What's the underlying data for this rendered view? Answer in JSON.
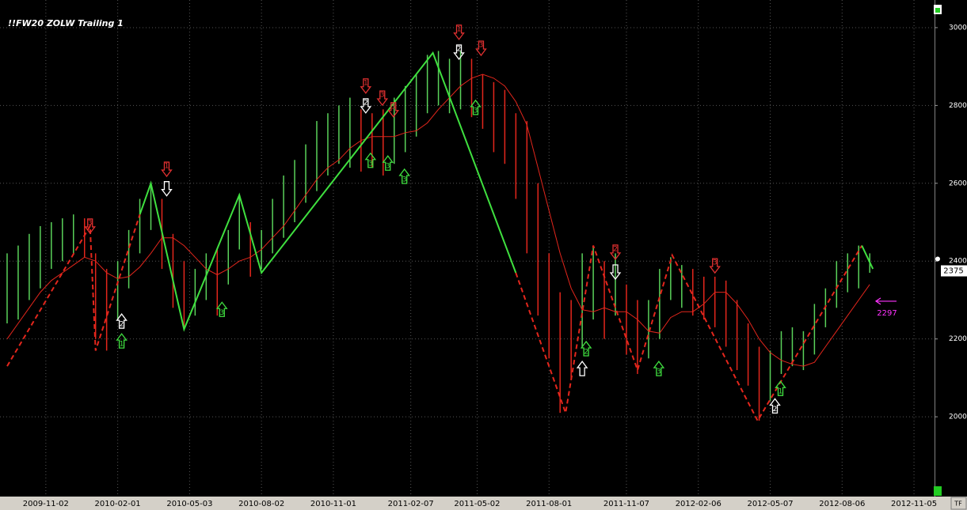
{
  "chart_data": {
    "type": "ohlc",
    "title": "!!FW20 ZOLW Trailing 1",
    "x": [
      "2009-09-14",
      "2009-09-28",
      "2009-10-12",
      "2009-10-26",
      "2009-11-09",
      "2009-11-23",
      "2009-12-07",
      "2009-12-21",
      "2010-01-04",
      "2010-01-18",
      "2010-02-01",
      "2010-02-15",
      "2010-03-01",
      "2010-03-15",
      "2010-03-29",
      "2010-04-12",
      "2010-04-26",
      "2010-05-10",
      "2010-05-24",
      "2010-06-07",
      "2010-06-21",
      "2010-07-05",
      "2010-07-19",
      "2010-08-02",
      "2010-08-16",
      "2010-08-30",
      "2010-09-13",
      "2010-09-27",
      "2010-10-11",
      "2010-10-25",
      "2010-11-08",
      "2010-11-22",
      "2010-12-06",
      "2010-12-20",
      "2011-01-03",
      "2011-01-17",
      "2011-01-31",
      "2011-02-14",
      "2011-02-28",
      "2011-03-14",
      "2011-03-28",
      "2011-04-11",
      "2011-04-25",
      "2011-05-09",
      "2011-05-23",
      "2011-06-06",
      "2011-06-20",
      "2011-07-04",
      "2011-07-18",
      "2011-08-01",
      "2011-08-15",
      "2011-08-29",
      "2011-09-12",
      "2011-09-26",
      "2011-10-10",
      "2011-10-24",
      "2011-11-07",
      "2011-11-21",
      "2011-12-05",
      "2011-12-19",
      "2012-01-02",
      "2012-01-16",
      "2012-01-30",
      "2012-02-13",
      "2012-02-27",
      "2012-03-12",
      "2012-03-26",
      "2012-04-09",
      "2012-04-23",
      "2012-05-07",
      "2012-05-21",
      "2012-06-04",
      "2012-06-18",
      "2012-07-02",
      "2012-07-16",
      "2012-07-30",
      "2012-08-13",
      "2012-08-27",
      "2012-09-10"
    ],
    "high": [
      2420,
      2440,
      2470,
      2490,
      2500,
      2510,
      2520,
      2510,
      2420,
      2380,
      2400,
      2480,
      2560,
      2600,
      2560,
      2470,
      2400,
      2380,
      2420,
      2430,
      2480,
      2570,
      2500,
      2480,
      2560,
      2620,
      2660,
      2700,
      2760,
      2780,
      2800,
      2820,
      2790,
      2780,
      2790,
      2820,
      2850,
      2880,
      2930,
      2940,
      2920,
      2940,
      2920,
      2880,
      2860,
      2840,
      2780,
      2760,
      2600,
      2420,
      2320,
      2300,
      2420,
      2440,
      2400,
      2420,
      2340,
      2300,
      2300,
      2380,
      2410,
      2390,
      2380,
      2360,
      2360,
      2350,
      2300,
      2240,
      2180,
      2170,
      2220,
      2230,
      2220,
      2290,
      2330,
      2400,
      2420,
      2440,
      2420
    ],
    "low": [
      2240,
      2250,
      2300,
      2330,
      2380,
      2400,
      2420,
      2410,
      2200,
      2170,
      2250,
      2330,
      2420,
      2480,
      2380,
      2280,
      2230,
      2260,
      2300,
      2260,
      2340,
      2430,
      2360,
      2380,
      2420,
      2460,
      2500,
      2550,
      2580,
      2620,
      2650,
      2640,
      2630,
      2640,
      2620,
      2650,
      2680,
      2720,
      2780,
      2800,
      2780,
      2790,
      2770,
      2740,
      2680,
      2650,
      2560,
      2420,
      2260,
      2150,
      2010,
      2100,
      2180,
      2250,
      2200,
      2260,
      2160,
      2110,
      2150,
      2200,
      2300,
      2280,
      2260,
      2250,
      2230,
      2180,
      2120,
      2080,
      1990,
      2040,
      2110,
      2130,
      2120,
      2160,
      2230,
      2280,
      2320,
      2330,
      2370
    ],
    "bar_colors": [
      "#5ad25a",
      "#5ad25a",
      "#5ad25a",
      "#5ad25a",
      "#5ad25a",
      "#5ad25a",
      "#5ad25a",
      "#e3261c",
      "#e3261c",
      "#e3261c",
      "#5ad25a",
      "#5ad25a",
      "#5ad25a",
      "#5ad25a",
      "#e3261c",
      "#e3261c",
      "#e3261c",
      "#5ad25a",
      "#5ad25a",
      "#e3261c",
      "#5ad25a",
      "#5ad25a",
      "#e3261c",
      "#5ad25a",
      "#5ad25a",
      "#5ad25a",
      "#5ad25a",
      "#5ad25a",
      "#5ad25a",
      "#5ad25a",
      "#5ad25a",
      "#5ad25a",
      "#e3261c",
      "#e3261c",
      "#e3261c",
      "#5ad25a",
      "#5ad25a",
      "#5ad25a",
      "#5ad25a",
      "#5ad25a",
      "#5ad25a",
      "#5ad25a",
      "#e3261c",
      "#e3261c",
      "#e3261c",
      "#e3261c",
      "#e3261c",
      "#e3261c",
      "#e3261c",
      "#e3261c",
      "#e3261c",
      "#e3261c",
      "#5ad25a",
      "#5ad25a",
      "#e3261c",
      "#5ad25a",
      "#e3261c",
      "#e3261c",
      "#5ad25a",
      "#5ad25a",
      "#5ad25a",
      "#5ad25a",
      "#e3261c",
      "#e3261c",
      "#e3261c",
      "#e3261c",
      "#e3261c",
      "#e3261c",
      "#e3261c",
      "#5ad25a",
      "#5ad25a",
      "#5ad25a",
      "#5ad25a",
      "#5ad25a",
      "#5ad25a",
      "#5ad25a",
      "#5ad25a",
      "#5ad25a",
      "#5ad25a"
    ],
    "ma": [
      2200,
      2240,
      2280,
      2320,
      2350,
      2370,
      2390,
      2410,
      2400,
      2370,
      2355,
      2360,
      2385,
      2420,
      2460,
      2460,
      2440,
      2410,
      2380,
      2365,
      2380,
      2400,
      2410,
      2430,
      2460,
      2490,
      2530,
      2570,
      2610,
      2640,
      2660,
      2690,
      2710,
      2720,
      2720,
      2720,
      2730,
      2735,
      2755,
      2790,
      2820,
      2850,
      2870,
      2880,
      2870,
      2850,
      2810,
      2750,
      2640,
      2530,
      2420,
      2330,
      2275,
      2270,
      2280,
      2270,
      2270,
      2250,
      2220,
      2215,
      2255,
      2270,
      2270,
      2290,
      2320,
      2320,
      2290,
      2250,
      2200,
      2165,
      2145,
      2135,
      2130,
      2140,
      2180,
      2220,
      2260,
      2300,
      2340
    ],
    "ma_color": "#e3261c",
    "zigzag": [
      {
        "color": "#e3261c",
        "dash": true,
        "x": [
          "2009-09-14",
          "2009-12-28",
          "2010-01-04",
          "2010-03-01"
        ],
        "values": [
          2130,
          2490,
          2170,
          2520
        ]
      },
      {
        "color": "#3fe03f",
        "dash": false,
        "x": [
          "2010-03-01",
          "2010-03-15",
          "2010-04-26",
          "2010-07-05",
          "2010-08-02",
          "2011-03-07",
          "2011-06-20"
        ],
        "values": [
          2520,
          2600,
          2225,
          2570,
          2370,
          2935,
          2370
        ]
      },
      {
        "color": "#e3261c",
        "dash": true,
        "x": [
          "2011-06-20",
          "2011-08-22",
          "2011-09-26",
          "2011-11-21",
          "2012-01-04",
          "2012-04-21",
          "2012-08-31"
        ],
        "values": [
          2370,
          2010,
          2440,
          2120,
          2415,
          1990,
          2440
        ]
      },
      {
        "color": "#3fe03f",
        "dash": false,
        "x": [
          "2012-08-31",
          "2012-09-14"
        ],
        "values": [
          2440,
          2380
        ]
      }
    ],
    "signals": [
      {
        "date": "2009-12-28",
        "price": 2488,
        "direction": "down",
        "color": "#e03030",
        "label": "3"
      },
      {
        "date": "2010-02-06",
        "price": 2248,
        "direction": "up",
        "color": "#ffffff",
        "label": "2"
      },
      {
        "date": "2010-02-06",
        "price": 2197,
        "direction": "up",
        "color": "#40e040",
        "label": "1"
      },
      {
        "date": "2010-04-04",
        "price": 2634,
        "direction": "down",
        "color": "#e03030",
        "label": "1"
      },
      {
        "date": "2010-04-04",
        "price": 2584,
        "direction": "down",
        "color": "#ffffff"
      },
      {
        "date": "2010-06-13",
        "price": 2278,
        "direction": "up",
        "color": "#40e040",
        "label": "3"
      },
      {
        "date": "2010-12-12",
        "price": 2848,
        "direction": "down",
        "color": "#e03030",
        "label": "1"
      },
      {
        "date": "2010-12-12",
        "price": 2797,
        "direction": "down",
        "color": "#ffffff",
        "label": "2"
      },
      {
        "date": "2011-01-02",
        "price": 2817,
        "direction": "down",
        "color": "#e03030",
        "label": "3"
      },
      {
        "date": "2011-01-16",
        "price": 2787,
        "direction": "down",
        "color": "#e03030",
        "label": "3"
      },
      {
        "date": "2010-12-18",
        "price": 2661,
        "direction": "up",
        "color": "#40e040",
        "label": "3"
      },
      {
        "date": "2011-01-09",
        "price": 2654,
        "direction": "up",
        "color": "#40e040",
        "label": "3"
      },
      {
        "date": "2011-01-30",
        "price": 2620,
        "direction": "up",
        "color": "#40e040",
        "label": "3"
      },
      {
        "date": "2011-04-09",
        "price": 2986,
        "direction": "down",
        "color": "#e03030",
        "label": "1"
      },
      {
        "date": "2011-04-09",
        "price": 2935,
        "direction": "down",
        "color": "#ffffff",
        "label": "2"
      },
      {
        "date": "2011-05-07",
        "price": 2945,
        "direction": "down",
        "color": "#e03030",
        "label": "3"
      },
      {
        "date": "2011-04-30",
        "price": 2797,
        "direction": "up",
        "color": "#40e040",
        "label": "3"
      },
      {
        "date": "2011-09-17",
        "price": 2177,
        "direction": "up",
        "color": "#40e040",
        "label": "2"
      },
      {
        "date": "2011-09-12",
        "price": 2126,
        "direction": "up",
        "color": "#ffffff"
      },
      {
        "date": "2011-10-24",
        "price": 2421,
        "direction": "down",
        "color": "#e03030",
        "label": "2"
      },
      {
        "date": "2011-10-24",
        "price": 2370,
        "direction": "down",
        "color": "#ffffff"
      },
      {
        "date": "2011-12-18",
        "price": 2126,
        "direction": "up",
        "color": "#40e040",
        "label": "3"
      },
      {
        "date": "2012-02-27",
        "price": 2386,
        "direction": "down",
        "color": "#e03030",
        "label": "3"
      },
      {
        "date": "2012-05-20",
        "price": 2075,
        "direction": "up",
        "color": "#40e040",
        "label": "1"
      },
      {
        "date": "2012-05-13",
        "price": 2030,
        "direction": "up",
        "color": "#ffffff",
        "label": "2"
      }
    ],
    "last_price": 2375,
    "target": {
      "value": 2297,
      "color": "#ff33ff"
    },
    "xlim": [
      "2009-09-05",
      "2012-12-01"
    ],
    "xticks": [
      "2009-11-02",
      "2010-02-01",
      "2010-05-03",
      "2010-08-02",
      "2010-11-01",
      "2011-02-07",
      "2011-05-02",
      "2011-08-01",
      "2011-11-07",
      "2012-02-06",
      "2012-05-07",
      "2012-08-06",
      "2012-11-05"
    ],
    "ylim": [
      1795,
      3071
    ],
    "yticks": [
      2000,
      2200,
      2400,
      2600,
      2800,
      3000
    ],
    "grid": true
  }
}
